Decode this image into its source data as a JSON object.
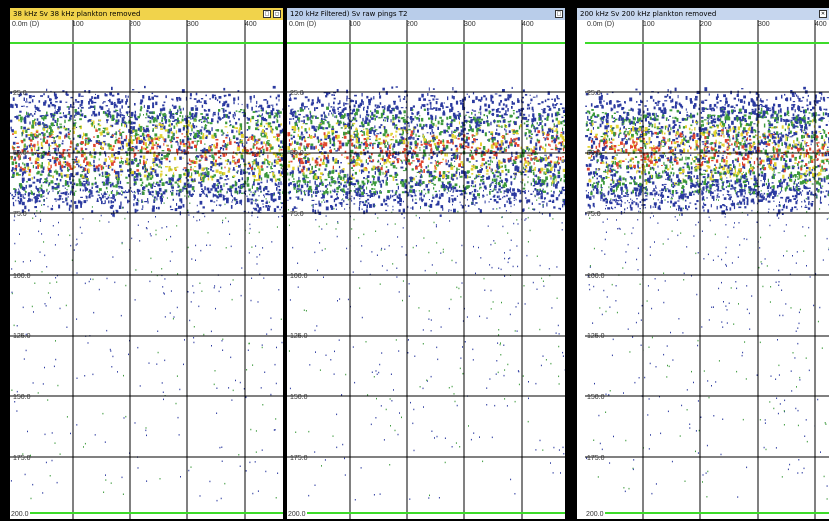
{
  "panels": [
    {
      "title": "38 kHz Sv 38 kHz plankton removed",
      "title_bg": "#f1d34b",
      "controls": [
        "□",
        "◻",
        "✕"
      ],
      "x_ticks": [
        "0.0m (D)",
        "100",
        "200",
        "300",
        "400"
      ],
      "depth_ticks": [
        "25.0",
        "50.0",
        "75.0",
        "100.0",
        "125.0",
        "150.0",
        "175.0"
      ],
      "bottom_label": "200.0",
      "icon": "frequency-38khz-icon"
    },
    {
      "title": "120 kHz Filtered) Sv raw pings T2",
      "title_bg": "#b9cdea",
      "controls": [
        "□",
        "◻",
        "✕"
      ],
      "x_ticks": [
        "0.0m (D)",
        "100",
        "200",
        "300",
        "400"
      ],
      "depth_ticks": [
        "25.0",
        "50.0",
        "75.0",
        "100.0",
        "125.0",
        "150.0",
        "175.0"
      ],
      "bottom_label": "200.0",
      "icon": "frequency-120khz-icon"
    },
    {
      "title": "200 kHz Sv 200 kHz plankton removed",
      "title_bg": "#c6d6ee",
      "controls": [
        "□",
        "◻",
        "✕"
      ],
      "x_ticks": [
        "0.0m (D)",
        "100",
        "200",
        "300",
        "400"
      ],
      "depth_ticks": [
        "25.0",
        "50.0",
        "75.0",
        "100.0",
        "125.0",
        "150.0",
        "175.0"
      ],
      "bottom_label": "200.0",
      "icon": "frequency-200khz-icon"
    }
  ],
  "colors": {
    "grid": "#000000",
    "line_green": "#3ddb2a",
    "echo_low": "#2b3aa0",
    "echo_mid": "#3c9a3c",
    "echo_high": "#e2d233",
    "echo_peak": "#e0452f"
  }
}
